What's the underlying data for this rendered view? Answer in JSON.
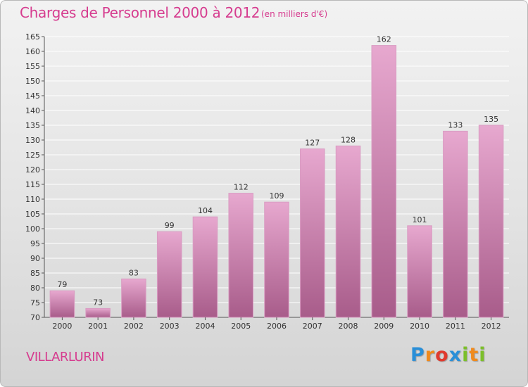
{
  "title": "Charges de Personnel 2000 à 2012",
  "subtitle": "(en milliers d'€)",
  "commune": "VILLARLURIN",
  "logo": {
    "letters": [
      "P",
      "r",
      "o",
      "x",
      "i",
      "t",
      "i"
    ],
    "colors": [
      "#2a8fd8",
      "#f08a1c",
      "#e03a2e",
      "#2a8fd8",
      "#7cbf2a",
      "#f08a1c",
      "#7cbf2a"
    ]
  },
  "colors": {
    "accent": "#d63c8f",
    "bar_top": "#e7a8cf",
    "bar_bottom": "#a85c8a"
  },
  "chart_data": {
    "type": "bar",
    "categories": [
      "2000",
      "2001",
      "2002",
      "2003",
      "2004",
      "2005",
      "2006",
      "2007",
      "2008",
      "2009",
      "2010",
      "2011",
      "2012"
    ],
    "values": [
      79,
      73,
      83,
      99,
      104,
      112,
      109,
      127,
      128,
      162,
      101,
      133,
      135
    ],
    "ylim": [
      70,
      165
    ],
    "yticks": [
      70,
      75,
      80,
      85,
      90,
      95,
      100,
      105,
      110,
      115,
      120,
      125,
      130,
      135,
      140,
      145,
      150,
      155,
      160,
      165
    ],
    "grid": true,
    "data_labels": true
  }
}
